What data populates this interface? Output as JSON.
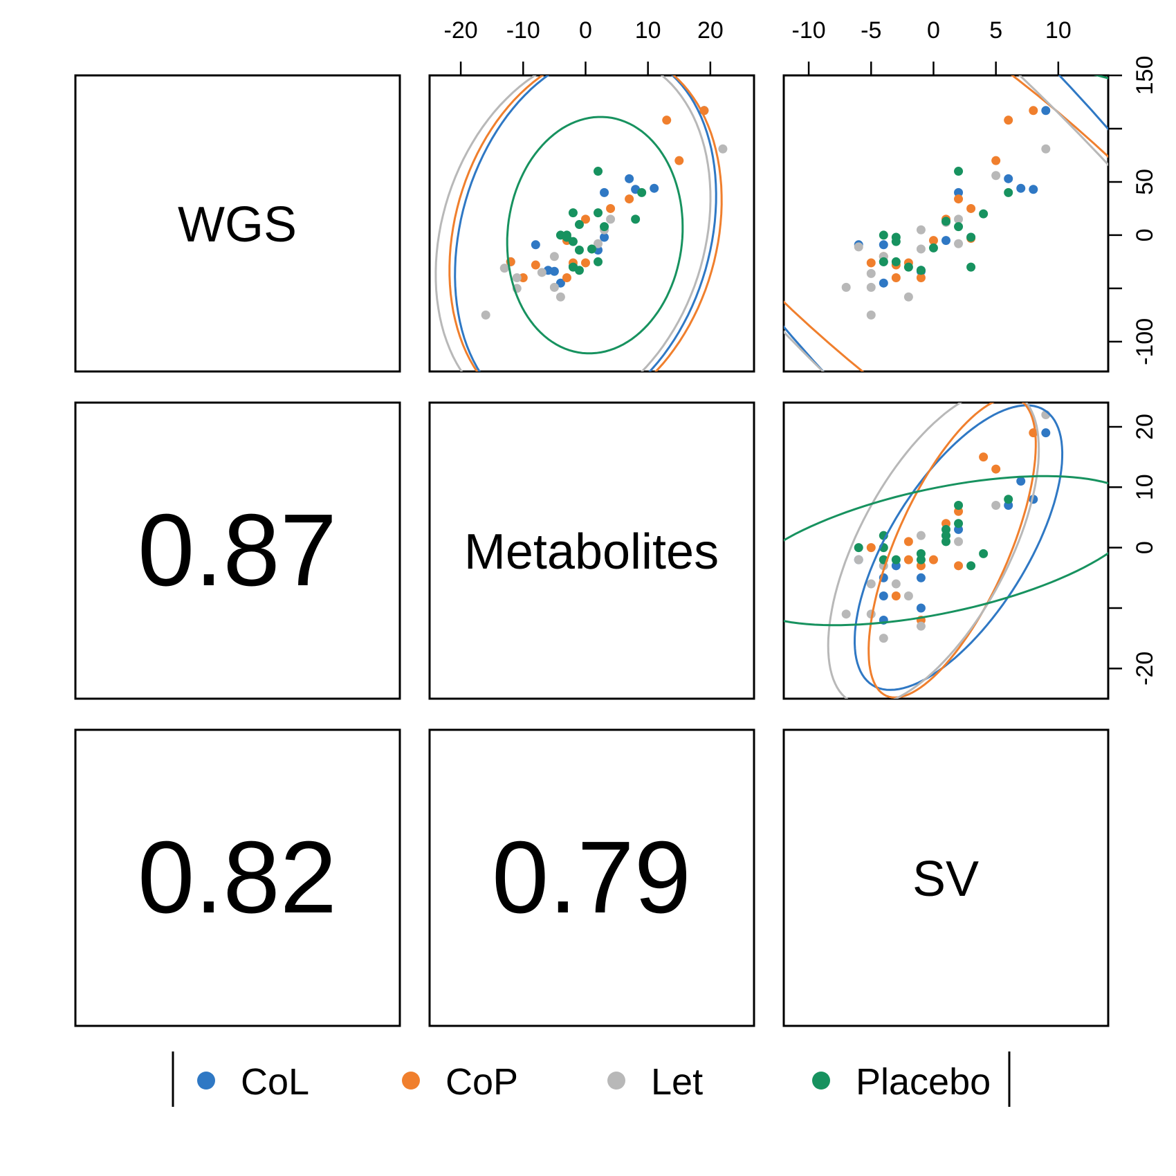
{
  "variables": [
    "WGS",
    "Metabolites",
    "SV"
  ],
  "correlations": [
    {
      "row": "Metabolites",
      "col": "WGS",
      "value": "0.87"
    },
    {
      "row": "SV",
      "col": "WGS",
      "value": "0.82"
    },
    {
      "row": "SV",
      "col": "Metabolites",
      "value": "0.79"
    }
  ],
  "legend": {
    "items": [
      {
        "label": "CoL",
        "color": "#2f78c4"
      },
      {
        "label": "CoP",
        "color": "#f07f2d"
      },
      {
        "label": "Let",
        "color": "#b8b8b8"
      },
      {
        "label": "Placebo",
        "color": "#17925f"
      }
    ]
  },
  "chart_data": {
    "type": "scatter",
    "layout": "pairs-matrix",
    "axes": {
      "Metabolites": {
        "range": [
          -25,
          27
        ],
        "ticks": [
          -20,
          -10,
          0,
          10,
          20
        ]
      },
      "SV_top": {
        "range": [
          -12,
          14
        ],
        "ticks": [
          -10,
          -5,
          0,
          5,
          10
        ]
      },
      "WGS": {
        "range": [
          -128,
          150
        ],
        "ticks": [
          -100,
          -50,
          0,
          50,
          100,
          150
        ],
        "tick_labels": [
          "-100",
          "",
          "0",
          "50",
          "",
          "150"
        ]
      },
      "SV_right": {
        "range": [
          -25,
          24
        ],
        "ticks": [
          -20,
          -10,
          0,
          10,
          20
        ],
        "tick_labels": [
          "-20",
          "",
          "0",
          "10",
          "20"
        ]
      }
    },
    "panels": [
      {
        "id": "wgs-vs-metabolites",
        "x_var": "Metabolites",
        "y_var": "WGS",
        "series": [
          {
            "name": "CoL",
            "points": [
              [
                19,
                117
              ],
              [
                7,
                53
              ],
              [
                8,
                43
              ],
              [
                11,
                44
              ],
              [
                3,
                40
              ],
              [
                -8,
                -9
              ],
              [
                -12,
                -25
              ],
              [
                -6,
                -33
              ],
              [
                -5,
                -34
              ],
              [
                -2,
                -29
              ],
              [
                -4,
                -45
              ],
              [
                3,
                -2
              ],
              [
                2,
                -14
              ]
            ],
            "ellipse": {
              "cx": 0,
              "cy": 0,
              "rx": 30,
              "ry": 20,
              "angle": 74
            }
          },
          {
            "name": "CoP",
            "points": [
              [
                19,
                117
              ],
              [
                13,
                108
              ],
              [
                15,
                70
              ],
              [
                7,
                34
              ],
              [
                4,
                25
              ],
              [
                0,
                15
              ],
              [
                -3,
                -5
              ],
              [
                -2,
                -26
              ],
              [
                0,
                -26
              ],
              [
                -3,
                -40
              ],
              [
                -10,
                -40
              ],
              [
                -8,
                -28
              ],
              [
                -12,
                -25
              ]
            ],
            "ellipse": {
              "cx": 0,
              "cy": 0,
              "rx": 30,
              "ry": 21,
              "angle": 74
            }
          },
          {
            "name": "Let",
            "points": [
              [
                22,
                81
              ],
              [
                4,
                15
              ],
              [
                3,
                5
              ],
              [
                2,
                -8
              ],
              [
                1,
                -13
              ],
              [
                -5,
                -20
              ],
              [
                -7,
                -35
              ],
              [
                -5,
                -49
              ],
              [
                -4,
                -58
              ],
              [
                -11,
                -40
              ],
              [
                -11,
                -50
              ],
              [
                -13,
                -31
              ],
              [
                -16,
                -75
              ]
            ],
            "ellipse": {
              "cx": -2,
              "cy": -1,
              "rx": 30,
              "ry": 21,
              "angle": 72
            }
          },
          {
            "name": "Placebo",
            "points": [
              [
                2,
                60
              ],
              [
                9,
                40
              ],
              [
                8,
                15
              ],
              [
                3,
                8
              ],
              [
                2,
                21
              ],
              [
                -2,
                21
              ],
              [
                -1,
                10
              ],
              [
                -3,
                0
              ],
              [
                -4,
                0
              ],
              [
                -2,
                -6
              ],
              [
                -3,
                -2
              ],
              [
                -1,
                -14
              ],
              [
                1,
                -13
              ],
              [
                -1,
                -33
              ],
              [
                2,
                -25
              ],
              [
                -2,
                -30
              ]
            ],
            "ellipse": {
              "cx": 1.5,
              "cy": 0,
              "rx": 19,
              "ry": 14,
              "angle": 84
            }
          }
        ]
      },
      {
        "id": "wgs-vs-sv",
        "x_var": "SV",
        "y_var": "WGS",
        "series": [
          {
            "name": "CoL",
            "points": [
              [
                9,
                117
              ],
              [
                6,
                53
              ],
              [
                7,
                44
              ],
              [
                8,
                43
              ],
              [
                2,
                40
              ],
              [
                -6,
                -9
              ],
              [
                -4,
                -45
              ],
              [
                -1,
                -33
              ],
              [
                -1,
                -34
              ],
              [
                -4,
                -25
              ],
              [
                -4,
                -9
              ],
              [
                1,
                -5
              ],
              [
                3,
                -2
              ]
            ],
            "ellipse": {
              "cx": 1.5,
              "cy": 0,
              "rx": 15,
              "ry": 48,
              "angle": 42
            }
          },
          {
            "name": "CoP",
            "points": [
              [
                8,
                117
              ],
              [
                6,
                108
              ],
              [
                5,
                70
              ],
              [
                2,
                34
              ],
              [
                3,
                25
              ],
              [
                1,
                15
              ],
              [
                -2,
                -26
              ],
              [
                -3,
                -40
              ],
              [
                -1,
                -40
              ],
              [
                0,
                -5
              ],
              [
                -5,
                -26
              ],
              [
                -3,
                -28
              ],
              [
                -4,
                -20
              ],
              [
                3,
                -3
              ]
            ],
            "ellipse": {
              "cx": 1.5,
              "cy": 0,
              "rx": 13,
              "ry": 38,
              "angle": 50
            }
          },
          {
            "name": "Let",
            "points": [
              [
                9,
                81
              ],
              [
                5,
                56
              ],
              [
                2,
                15
              ],
              [
                1,
                12
              ],
              [
                2,
                -8
              ],
              [
                -1,
                -13
              ],
              [
                -4,
                -20
              ],
              [
                -5,
                -36
              ],
              [
                -5,
                -49
              ],
              [
                -7,
                -49
              ],
              [
                -2,
                -58
              ],
              [
                -5,
                -75
              ],
              [
                -6,
                -11
              ],
              [
                -1,
                5
              ]
            ],
            "ellipse": {
              "cx": 0,
              "cy": 0,
              "rx": 14,
              "ry": 48,
              "angle": 45
            }
          },
          {
            "name": "Placebo",
            "points": [
              [
                2,
                60
              ],
              [
                6,
                40
              ],
              [
                4,
                20
              ],
              [
                1,
                13
              ],
              [
                2,
                8
              ],
              [
                -4,
                0
              ],
              [
                -3,
                -2
              ],
              [
                -3,
                -6
              ],
              [
                0,
                -12
              ],
              [
                -2,
                -30
              ],
              [
                3,
                -2
              ],
              [
                -4,
                -25
              ],
              [
                -3,
                -25
              ],
              [
                -1,
                -33
              ],
              [
                3,
                -30
              ]
            ],
            "ellipse": {
              "cx": 0.5,
              "cy": -10,
              "rx": 16,
              "ry": 48,
              "angle": 80
            }
          }
        ]
      },
      {
        "id": "metabolites-vs-sv",
        "x_var": "SV",
        "y_var": "Metabolites",
        "series": [
          {
            "name": "CoL",
            "points": [
              [
                9,
                19
              ],
              [
                7,
                11
              ],
              [
                6,
                7
              ],
              [
                8,
                8
              ],
              [
                2,
                3
              ],
              [
                1,
                2
              ],
              [
                -6,
                -2
              ],
              [
                -4,
                -5
              ],
              [
                -4,
                -8
              ],
              [
                -1,
                -10
              ],
              [
                -4,
                -12
              ],
              [
                -1,
                -5
              ],
              [
                -3,
                -3
              ]
            ],
            "ellipse": {
              "cx": 2,
              "cy": 0,
              "rx": 13,
              "ry": 5.5,
              "angle": 58
            }
          },
          {
            "name": "CoP",
            "points": [
              [
                8,
                19
              ],
              [
                5,
                13
              ],
              [
                4,
                15
              ],
              [
                2,
                6
              ],
              [
                1,
                4
              ],
              [
                -2,
                1
              ],
              [
                -2,
                -2
              ],
              [
                -1,
                -12
              ],
              [
                0,
                -2
              ],
              [
                -3,
                -8
              ],
              [
                -5,
                0
              ],
              [
                -1,
                -3
              ],
              [
                2,
                -3
              ]
            ],
            "ellipse": {
              "cx": 1.5,
              "cy": 0,
              "rx": 13,
              "ry": 4.5,
              "angle": 66
            }
          },
          {
            "name": "Let",
            "points": [
              [
                9,
                22
              ],
              [
                5,
                7
              ],
              [
                2,
                1
              ],
              [
                1,
                3
              ],
              [
                -1,
                2
              ],
              [
                -3,
                -6
              ],
              [
                -5,
                -6
              ],
              [
                -7,
                -11
              ],
              [
                -5,
                -11
              ],
              [
                -1,
                -13
              ],
              [
                -4,
                -15
              ],
              [
                -6,
                -2
              ],
              [
                -2,
                -8
              ],
              [
                -4,
                -3
              ]
            ],
            "ellipse": {
              "cx": 0,
              "cy": 0,
              "rx": 14,
              "ry": 6,
              "angle": 62
            }
          },
          {
            "name": "Placebo",
            "points": [
              [
                2,
                7
              ],
              [
                6,
                8
              ],
              [
                4,
                -1
              ],
              [
                1,
                3
              ],
              [
                1,
                1
              ],
              [
                -4,
                0
              ],
              [
                -3,
                -2
              ],
              [
                -4,
                -2
              ],
              [
                -1,
                -2
              ],
              [
                -1,
                -1
              ],
              [
                3,
                -3
              ],
              [
                -4,
                2
              ],
              [
                -6,
                0
              ],
              [
                1,
                2
              ],
              [
                2,
                4
              ]
            ],
            "ellipse": {
              "cx": 0.5,
              "cy": -0.5,
              "rx": 16.5,
              "ry": 5,
              "angle": 12
            }
          }
        ]
      }
    ]
  }
}
